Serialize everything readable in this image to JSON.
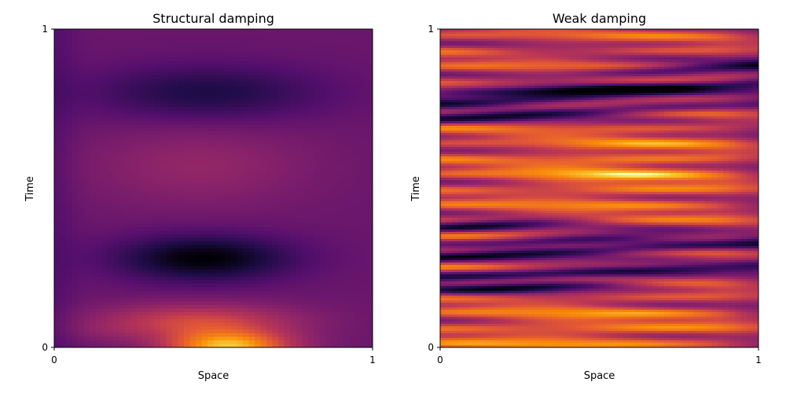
{
  "chart_data": [
    {
      "type": "heatmap",
      "title": "Structural damping",
      "xlabel": "Space",
      "ylabel": "Time",
      "xlim": [
        0,
        1
      ],
      "ylim": [
        0,
        1
      ],
      "xticks": [
        "0",
        "1"
      ],
      "yticks": [
        "0",
        "1"
      ],
      "colormap": "inferno",
      "grid": false,
      "description_features": {
        "bright_band_time": 0.02,
        "dark_band_time": 0.28,
        "mid_band_time": 0.58,
        "upper_dark_band_time": 0.8
      }
    },
    {
      "type": "heatmap",
      "title": "Weak damping",
      "xlabel": "Space",
      "ylabel": "Time",
      "xlim": [
        0,
        1
      ],
      "ylim": [
        0,
        1
      ],
      "xticks": [
        "0",
        "1"
      ],
      "yticks": [
        "0",
        "1"
      ],
      "colormap": "inferno",
      "grid": false
    }
  ]
}
